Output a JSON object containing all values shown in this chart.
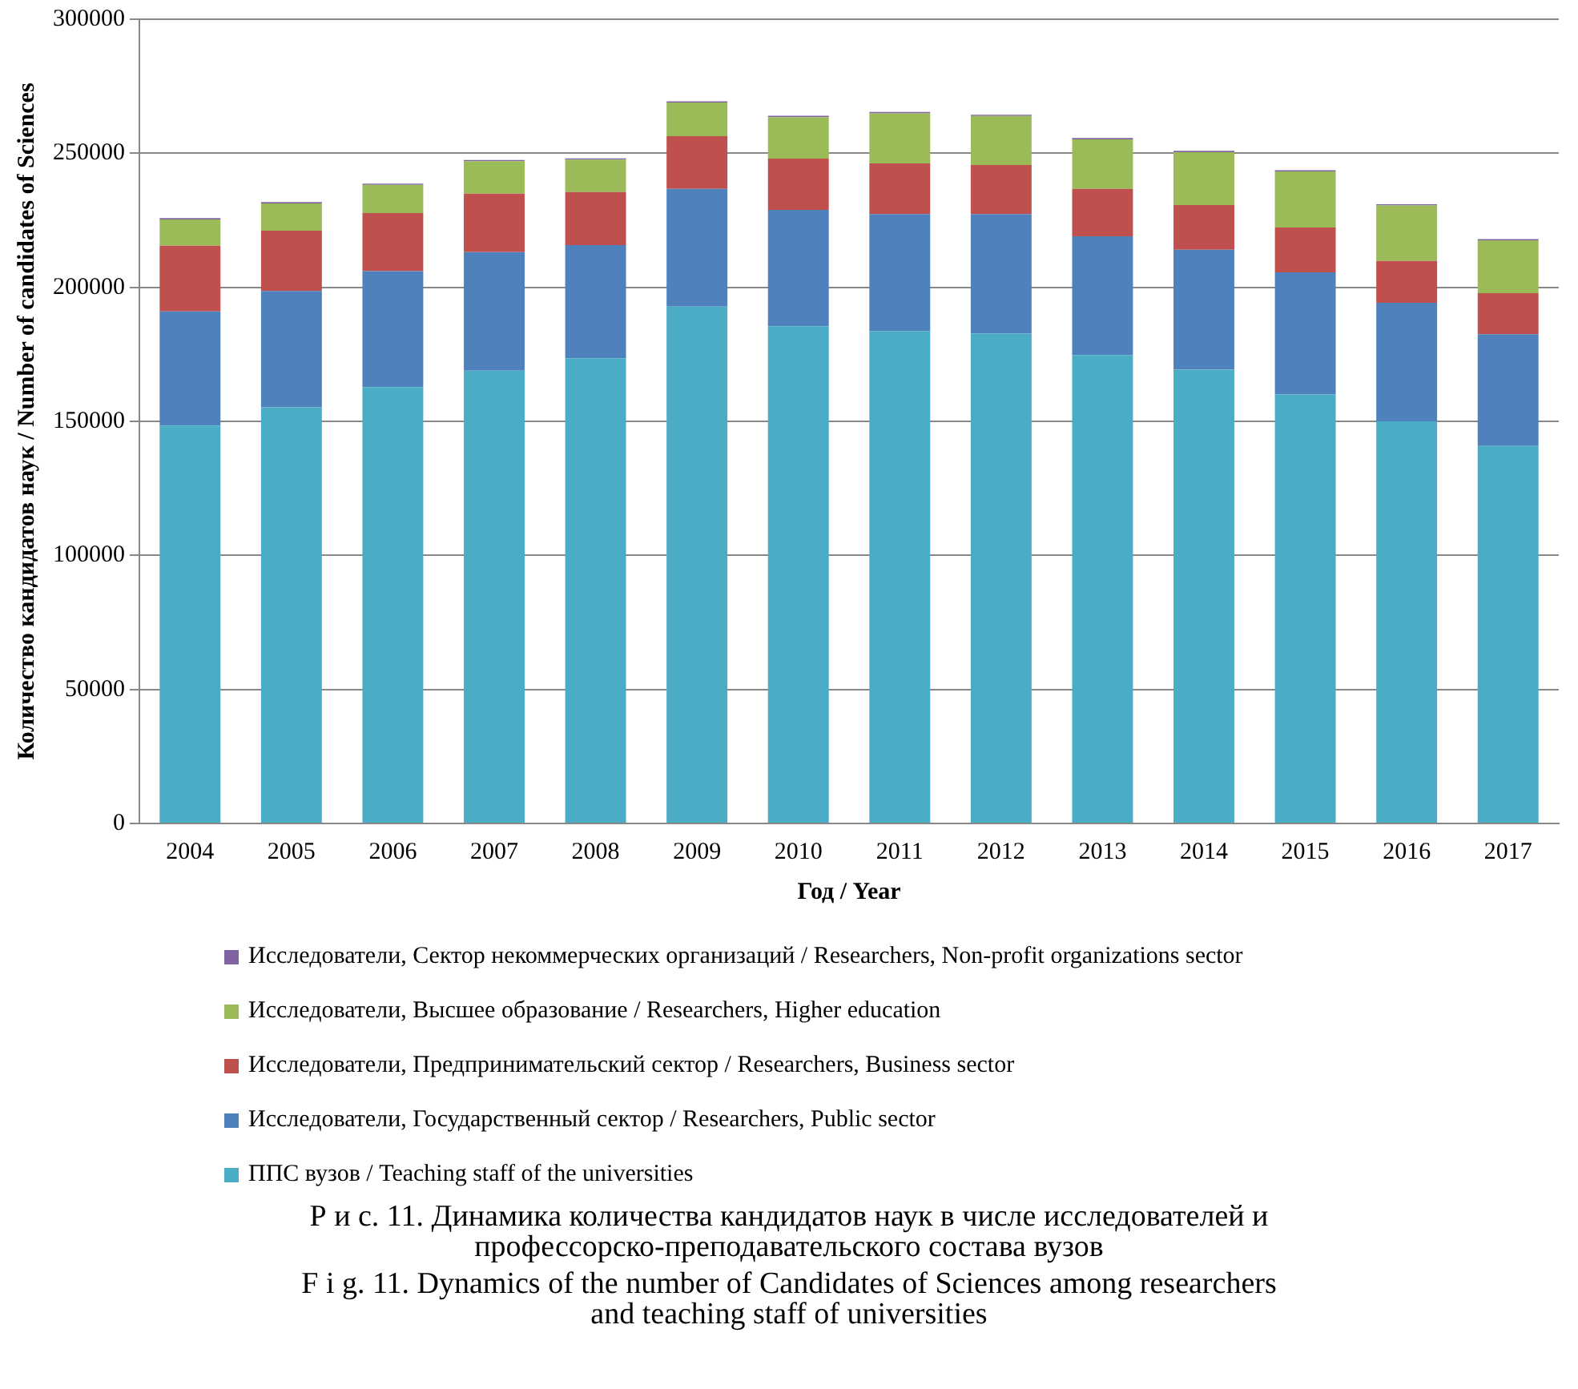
{
  "chart_data": {
    "type": "bar",
    "stacked": true,
    "xlabel": "Год / Year",
    "ylabel": "Количество кандидатов наук / Number of candidates of Sciences",
    "categories": [
      "2004",
      "2005",
      "2006",
      "2007",
      "2008",
      "2009",
      "2010",
      "2011",
      "2012",
      "2013",
      "2014",
      "2015",
      "2016",
      "2017"
    ],
    "ylim": [
      0,
      300000
    ],
    "yticks": [
      0,
      50000,
      100000,
      150000,
      200000,
      250000,
      300000
    ],
    "grid": "y",
    "legend": "bottom",
    "series": [
      {
        "name": "ППС вузов / Teaching staff of the universities",
        "color": "#4bacc6",
        "values": [
          148400,
          155200,
          162800,
          168900,
          173500,
          192800,
          185500,
          183700,
          182700,
          174700,
          169300,
          160000,
          150000,
          140800
        ]
      },
      {
        "name": "Исследователи, Государственный сектор / Researchers, Public sector",
        "color": "#4f81bd",
        "values": [
          42600,
          43400,
          43200,
          44200,
          42200,
          43900,
          43400,
          43600,
          44600,
          44300,
          44700,
          45600,
          44200,
          41700
        ]
      },
      {
        "name": "Исследователи, Предпринимательский сектор / Researchers, Business sector",
        "color": "#c0504d",
        "values": [
          24500,
          22500,
          21700,
          21800,
          19800,
          19700,
          19100,
          18900,
          18300,
          17700,
          16700,
          16700,
          15600,
          15300
        ]
      },
      {
        "name": "Исследователи, Высшее образование / Researchers, Higher education",
        "color": "#9bbb59",
        "values": [
          9800,
          10200,
          10500,
          12100,
          12100,
          12500,
          15500,
          18700,
          18300,
          18500,
          19700,
          20900,
          20700,
          19700
        ]
      },
      {
        "name": "Исследователи, Сектор некоммерческих организаций / Researchers, Non-profit organizations sector",
        "color": "#8064a2",
        "values": [
          500,
          500,
          500,
          500,
          500,
          500,
          500,
          500,
          500,
          500,
          500,
          500,
          500,
          500
        ]
      }
    ],
    "annotations": [
      "Р и с. 11. Динамика количества кандидатов наук в числе исследователей и профессорско-преподавательского состава вузов",
      "F i g. 11. Dynamics of the number of Candidates of Sciences among researchers and teaching staff of universities"
    ]
  }
}
